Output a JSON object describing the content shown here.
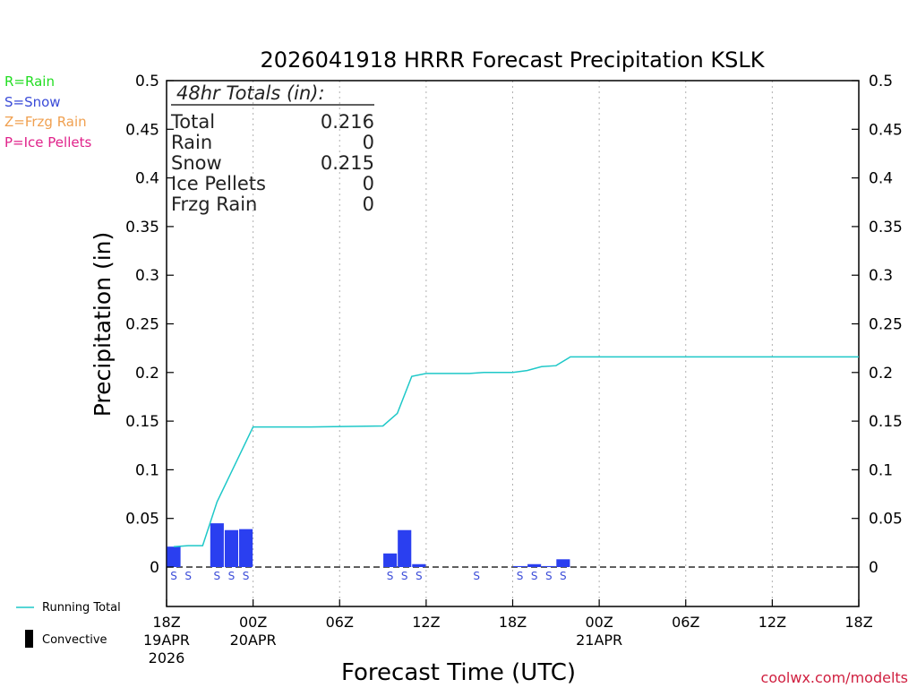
{
  "chart_data": {
    "type": "bar",
    "title": "2026041918 HRRR Forecast Precipitation KSLK",
    "xlabel": "Forecast Time (UTC)",
    "ylabel": "Precipitation (in)",
    "ylim": [
      0,
      0.5
    ],
    "xlim_hours": [
      0,
      48
    ],
    "y_ticks": [
      "0.5",
      "0.45",
      "0.4",
      "0.35",
      "0.3",
      "0.25",
      "0.2",
      "0.15",
      "0.1",
      "0.05",
      "0"
    ],
    "x_ticks": [
      {
        "hour": 0,
        "lines": [
          "18Z",
          "19APR",
          "2026"
        ]
      },
      {
        "hour": 6,
        "lines": [
          "00Z",
          "20APR"
        ]
      },
      {
        "hour": 12,
        "lines": [
          "06Z"
        ]
      },
      {
        "hour": 18,
        "lines": [
          "12Z"
        ]
      },
      {
        "hour": 24,
        "lines": [
          "18Z"
        ]
      },
      {
        "hour": 30,
        "lines": [
          "00Z",
          "21APR"
        ]
      },
      {
        "hour": 36,
        "lines": [
          "06Z"
        ]
      },
      {
        "hour": 42,
        "lines": [
          "12Z"
        ]
      },
      {
        "hour": 48,
        "lines": [
          "18Z"
        ]
      }
    ],
    "legend_types": [
      "R=Rain",
      "S=Snow",
      "Z=Frzg Rain",
      "P=Ice Pellets"
    ],
    "legend_series": [
      "Running Total",
      "Convective"
    ],
    "totals": {
      "heading": "48hr Totals (in):",
      "rows": [
        {
          "label": "Total",
          "value": "0.216"
        },
        {
          "label": "Rain",
          "value": "0"
        },
        {
          "label": "Snow",
          "value": "0.215"
        },
        {
          "label": "Ice Pellets",
          "value": "0"
        },
        {
          "label": "Frzg Rain",
          "value": "0"
        }
      ]
    },
    "hourly_bars": [
      {
        "hour": 1,
        "value": 0.021
      },
      {
        "hour": 4,
        "value": 0.045
      },
      {
        "hour": 5,
        "value": 0.038
      },
      {
        "hour": 6,
        "value": 0.039
      },
      {
        "hour": 16,
        "value": 0.014
      },
      {
        "hour": 17,
        "value": 0.038
      },
      {
        "hour": 18,
        "value": 0.003
      },
      {
        "hour": 25,
        "value": 0.001
      },
      {
        "hour": 26,
        "value": 0.003
      },
      {
        "hour": 27,
        "value": 0.001
      },
      {
        "hour": 28,
        "value": 0.008
      }
    ],
    "precip_type_markers": [
      {
        "hour": 1,
        "type": "S"
      },
      {
        "hour": 2,
        "type": "S"
      },
      {
        "hour": 4,
        "type": "S"
      },
      {
        "hour": 5,
        "type": "S"
      },
      {
        "hour": 6,
        "type": "S"
      },
      {
        "hour": 16,
        "type": "S"
      },
      {
        "hour": 17,
        "type": "S"
      },
      {
        "hour": 18,
        "type": "S"
      },
      {
        "hour": 22,
        "type": "S"
      },
      {
        "hour": 25,
        "type": "S"
      },
      {
        "hour": 26,
        "type": "S"
      },
      {
        "hour": 27,
        "type": "S"
      },
      {
        "hour": 28,
        "type": "S"
      }
    ],
    "running_total": {
      "hours": [
        0.5,
        1.5,
        2.5,
        3.5,
        6,
        7,
        10,
        15,
        16,
        17,
        18,
        21,
        22,
        24,
        25,
        26,
        27,
        28,
        48
      ],
      "values": [
        0.021,
        0.022,
        0.022,
        0.067,
        0.144,
        0.144,
        0.144,
        0.145,
        0.158,
        0.196,
        0.199,
        0.199,
        0.2,
        0.2,
        0.202,
        0.206,
        0.207,
        0.216,
        0.216
      ]
    },
    "colors": {
      "rain": "#22dd22",
      "snow": "#3a4bd8",
      "frzg_rain": "#f0a050",
      "ice_pellets": "#e0228a",
      "bars": "#2a3ff0",
      "running_total": "#1ec8c8",
      "grid": "#b0b0b0",
      "credit": "#d02040"
    }
  },
  "credit": "coolwx.com/modelts"
}
